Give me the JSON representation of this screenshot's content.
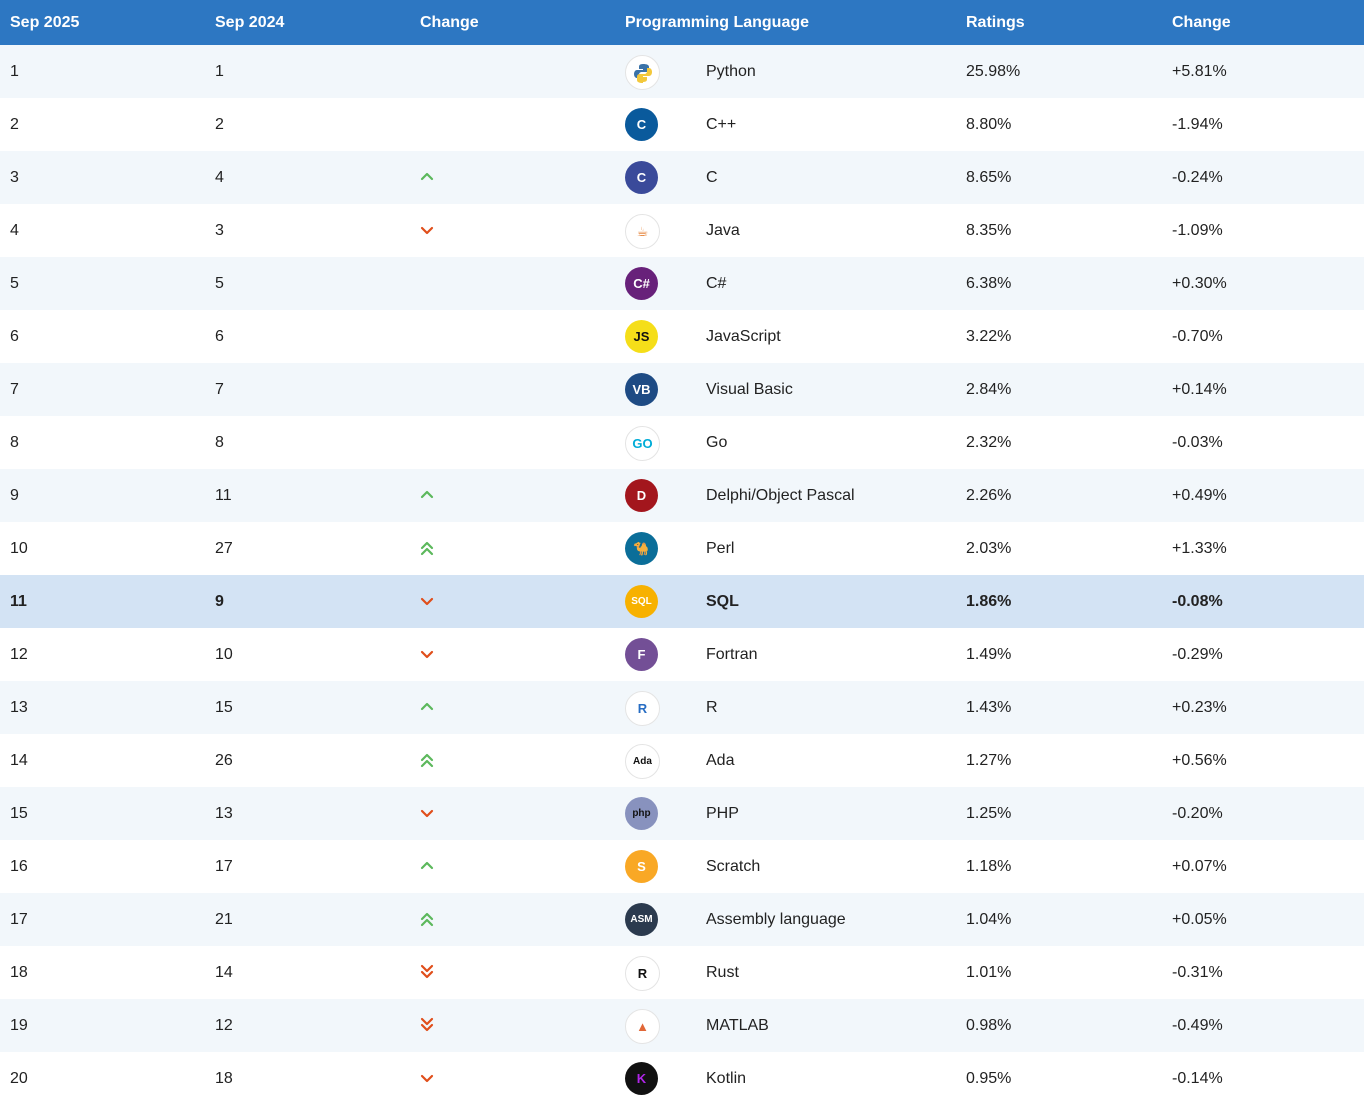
{
  "header": {
    "col_current": "Sep 2025",
    "col_previous": "Sep 2024",
    "col_change": "Change",
    "col_language": "Programming Language",
    "col_ratings": "Ratings",
    "col_rating_change": "Change"
  },
  "rows": [
    {
      "rank": "1",
      "prev": "1",
      "trend": "none",
      "logo": "python-logo",
      "logo_text": "",
      "logo_bg": "#ffffff",
      "logo_fg": "#3a72a8",
      "name": "Python",
      "rating": "25.98%",
      "delta": "+5.81%"
    },
    {
      "rank": "2",
      "prev": "2",
      "trend": "none",
      "logo": "cpp-logo",
      "logo_text": "C",
      "logo_bg": "#0a5a9c",
      "logo_fg": "#ffffff",
      "name": "C++",
      "rating": "8.80%",
      "delta": "-1.94%"
    },
    {
      "rank": "3",
      "prev": "4",
      "trend": "up",
      "logo": "c-logo",
      "logo_text": "C",
      "logo_bg": "#3a4a9a",
      "logo_fg": "#ffffff",
      "name": "C",
      "rating": "8.65%",
      "delta": "-0.24%"
    },
    {
      "rank": "4",
      "prev": "3",
      "trend": "down",
      "logo": "java-logo",
      "logo_text": "☕",
      "logo_bg": "#ffffff",
      "logo_fg": "#e2731f",
      "name": "Java",
      "rating": "8.35%",
      "delta": "-1.09%"
    },
    {
      "rank": "5",
      "prev": "5",
      "trend": "none",
      "logo": "csharp-logo",
      "logo_text": "C#",
      "logo_bg": "#68217a",
      "logo_fg": "#ffffff",
      "name": "C#",
      "rating": "6.38%",
      "delta": "+0.30%"
    },
    {
      "rank": "6",
      "prev": "6",
      "trend": "none",
      "logo": "javascript-logo",
      "logo_text": "JS",
      "logo_bg": "#f5de19",
      "logo_fg": "#111111",
      "name": "JavaScript",
      "rating": "3.22%",
      "delta": "-0.70%"
    },
    {
      "rank": "7",
      "prev": "7",
      "trend": "none",
      "logo": "visual-basic-logo",
      "logo_text": "VB",
      "logo_bg": "#1e4b84",
      "logo_fg": "#ffffff",
      "name": "Visual Basic",
      "rating": "2.84%",
      "delta": "+0.14%"
    },
    {
      "rank": "8",
      "prev": "8",
      "trend": "none",
      "logo": "go-logo",
      "logo_text": "GO",
      "logo_bg": "#ffffff",
      "logo_fg": "#00acd7",
      "name": "Go",
      "rating": "2.32%",
      "delta": "-0.03%"
    },
    {
      "rank": "9",
      "prev": "11",
      "trend": "up",
      "logo": "delphi-logo",
      "logo_text": "D",
      "logo_bg": "#a3161d",
      "logo_fg": "#ffffff",
      "name": "Delphi/Object Pascal",
      "rating": "2.26%",
      "delta": "+0.49%"
    },
    {
      "rank": "10",
      "prev": "27",
      "trend": "up2",
      "logo": "perl-logo",
      "logo_text": "🐪",
      "logo_bg": "#0b6e99",
      "logo_fg": "#ffffff",
      "name": "Perl",
      "rating": "2.03%",
      "delta": "+1.33%"
    },
    {
      "rank": "11",
      "prev": "9",
      "trend": "down",
      "logo": "sql-logo",
      "logo_text": "SQL",
      "logo_bg": "#f7b100",
      "logo_fg": "#ffffff",
      "name": "SQL",
      "rating": "1.86%",
      "delta": "-0.08%",
      "highlight": true
    },
    {
      "rank": "12",
      "prev": "10",
      "trend": "down",
      "logo": "fortran-logo",
      "logo_text": "F",
      "logo_bg": "#734f96",
      "logo_fg": "#ffffff",
      "name": "Fortran",
      "rating": "1.49%",
      "delta": "-0.29%"
    },
    {
      "rank": "13",
      "prev": "15",
      "trend": "up",
      "logo": "r-logo",
      "logo_text": "R",
      "logo_bg": "#ffffff",
      "logo_fg": "#276dc3",
      "name": "R",
      "rating": "1.43%",
      "delta": "+0.23%"
    },
    {
      "rank": "14",
      "prev": "26",
      "trend": "up2",
      "logo": "ada-logo",
      "logo_text": "Ada",
      "logo_bg": "#ffffff",
      "logo_fg": "#111111",
      "name": "Ada",
      "rating": "1.27%",
      "delta": "+0.56%"
    },
    {
      "rank": "15",
      "prev": "13",
      "trend": "down",
      "logo": "php-logo",
      "logo_text": "php",
      "logo_bg": "#8892be",
      "logo_fg": "#111111",
      "name": "PHP",
      "rating": "1.25%",
      "delta": "-0.20%"
    },
    {
      "rank": "16",
      "prev": "17",
      "trend": "up",
      "logo": "scratch-logo",
      "logo_text": "S",
      "logo_bg": "#f9a825",
      "logo_fg": "#ffffff",
      "name": "Scratch",
      "rating": "1.18%",
      "delta": "+0.07%"
    },
    {
      "rank": "17",
      "prev": "21",
      "trend": "up2",
      "logo": "assembly-logo",
      "logo_text": "ASM",
      "logo_bg": "#2b3a4e",
      "logo_fg": "#ffffff",
      "name": "Assembly language",
      "rating": "1.04%",
      "delta": "+0.05%"
    },
    {
      "rank": "18",
      "prev": "14",
      "trend": "down2",
      "logo": "rust-logo",
      "logo_text": "R",
      "logo_bg": "#ffffff",
      "logo_fg": "#111111",
      "name": "Rust",
      "rating": "1.01%",
      "delta": "-0.31%"
    },
    {
      "rank": "19",
      "prev": "12",
      "trend": "down2",
      "logo": "matlab-logo",
      "logo_text": "▲",
      "logo_bg": "#ffffff",
      "logo_fg": "#e16737",
      "name": "MATLAB",
      "rating": "0.98%",
      "delta": "-0.49%"
    },
    {
      "rank": "20",
      "prev": "18",
      "trend": "down",
      "logo": "kotlin-logo",
      "logo_text": "K",
      "logo_bg": "#111111",
      "logo_fg": "#b125ea",
      "name": "Kotlin",
      "rating": "0.95%",
      "delta": "-0.14%"
    }
  ],
  "colors": {
    "header_bg": "#2d77c2",
    "row_odd": "#f2f7fb",
    "row_even": "#ffffff",
    "row_highlight": "#d3e3f4",
    "trend_up": "#5cb85c",
    "trend_down": "#e04e1b"
  }
}
